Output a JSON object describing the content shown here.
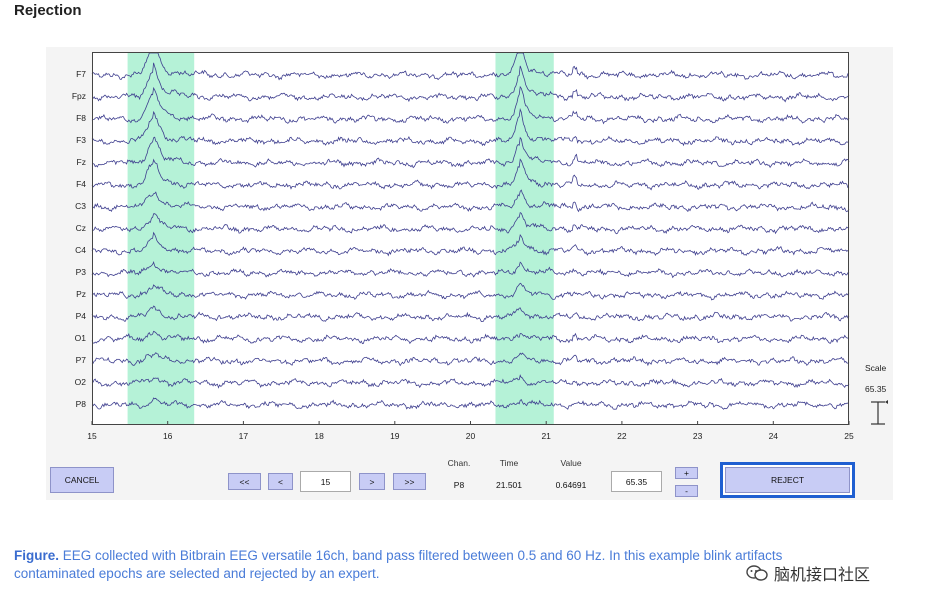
{
  "page": {
    "heading": "Rejection"
  },
  "chart_data": {
    "type": "line",
    "title": "",
    "xlabel": "",
    "ylabel": "",
    "xlim": [
      15,
      25
    ],
    "x_ticks": [
      "15",
      "16",
      "17",
      "18",
      "19",
      "20",
      "21",
      "22",
      "23",
      "24",
      "25"
    ],
    "channels": [
      "F7",
      "Fpz",
      "F8",
      "F3",
      "Fz",
      "F4",
      "C3",
      "Cz",
      "C4",
      "P3",
      "Pz",
      "P4",
      "O1",
      "P7",
      "O2",
      "P8"
    ],
    "selected_epochs": [
      {
        "start": 15.47,
        "end": 16.35
      },
      {
        "start": 20.33,
        "end": 21.1
      }
    ],
    "blink_peaks": [
      15.8,
      20.65
    ],
    "blink_amplitude_frontal_to_occipital": [
      1.0,
      0.95,
      0.9,
      0.85,
      0.78,
      0.72,
      0.5,
      0.45,
      0.4,
      0.32,
      0.3,
      0.27,
      0.22,
      0.2,
      0.17,
      0.15
    ],
    "artifact_step_at": 21.35,
    "colors": {
      "trace": "#3f3f8f",
      "selection": "#a8f0d0",
      "axis": "#444444"
    }
  },
  "scale": {
    "title": "Scale",
    "value": "65.35"
  },
  "controls": {
    "cancel_label": "CANCEL",
    "first_label": "<<",
    "prev_label": "<",
    "epoch_value": "15",
    "next_label": ">",
    "last_label": ">>",
    "info": {
      "chan_header": "Chan.",
      "time_header": "Time",
      "value_header": "Value",
      "chan_value": "P8",
      "time_value": "21.501",
      "value_value": "0.64691"
    },
    "scale_field_value": "65.35",
    "scale_up_label": "+",
    "scale_down_label": "-",
    "reject_label": "REJECT"
  },
  "caption": {
    "bold": "Figure.",
    "text": " EEG collected with Bitbrain EEG versatile 16ch, band pass filtered between 0.5 and 60 Hz. In this example blink artifacts contaminated epochs are selected and rejected by an expert."
  },
  "watermark": {
    "text": "脑机接口社区",
    "icon": "wechat-icon"
  }
}
